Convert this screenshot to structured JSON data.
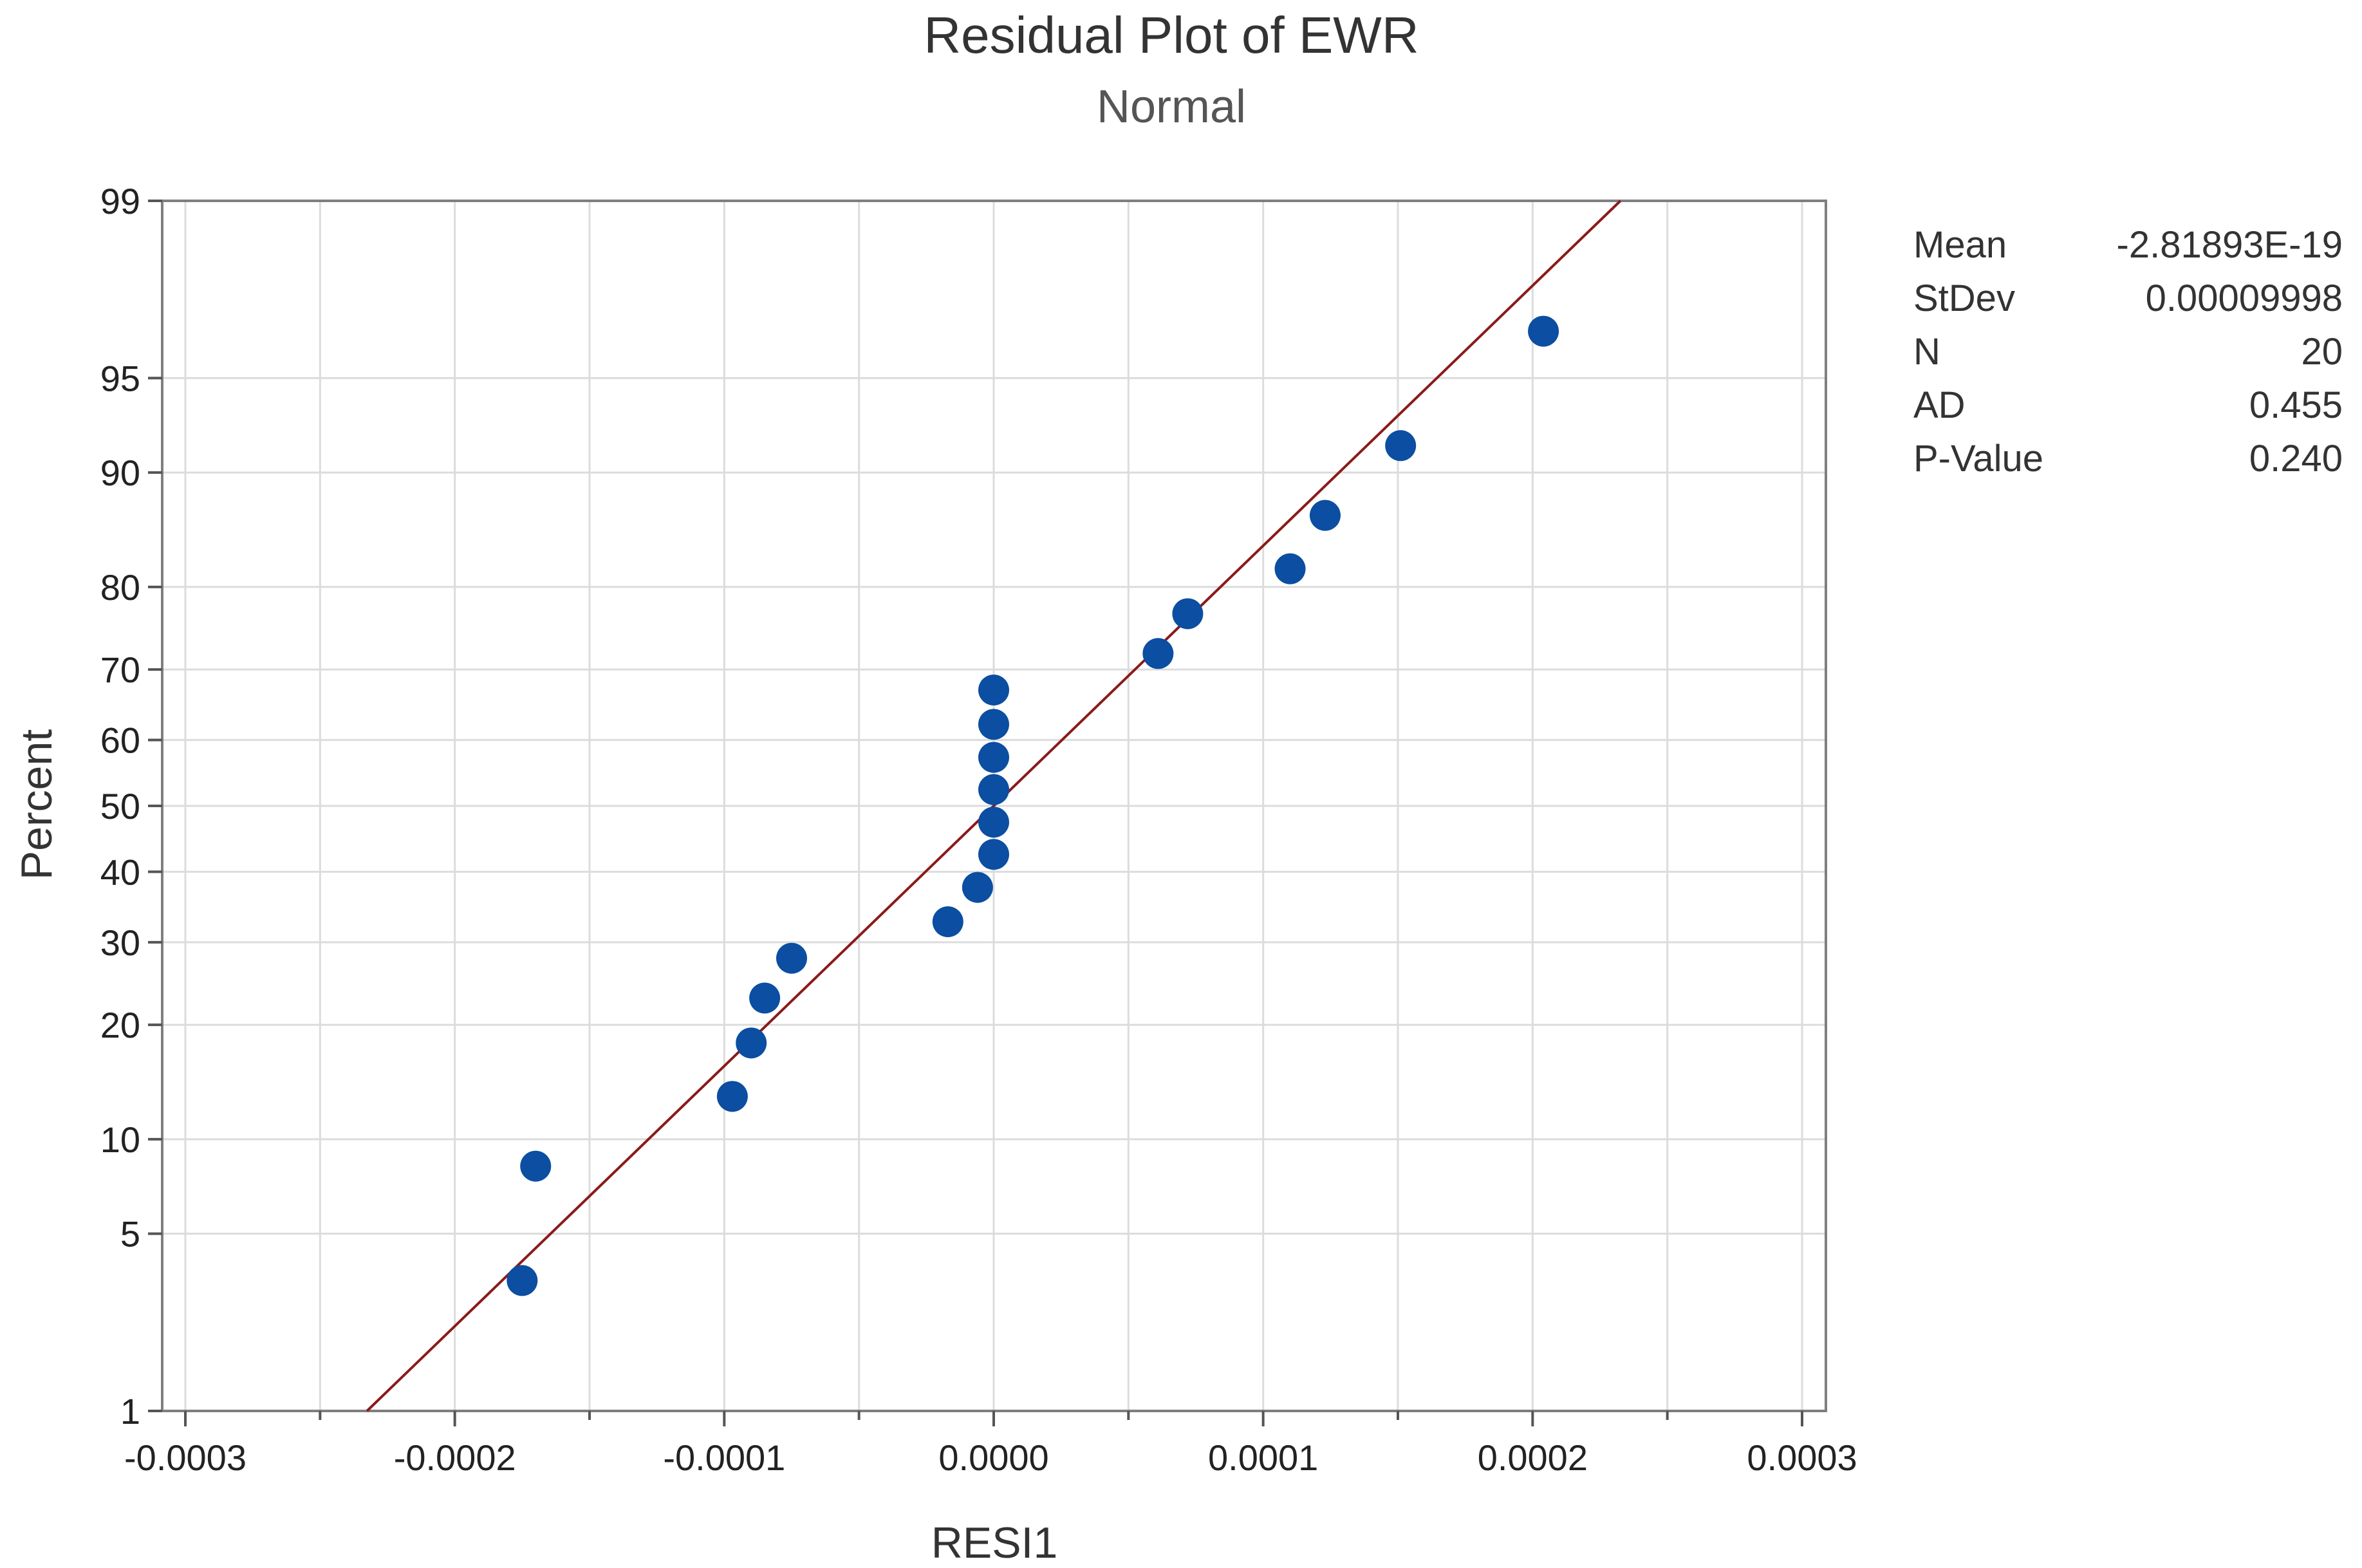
{
  "chart_data": {
    "type": "scatter",
    "title": "Residual Plot of EWR",
    "subtitle": "Normal",
    "xlabel": "RESI1",
    "ylabel": "Percent",
    "xlim": [
      -0.0003,
      0.0003
    ],
    "ylim": [
      1,
      99
    ],
    "y_scale": "normal-probability",
    "grid": true,
    "x_ticks": [
      -0.0003,
      -0.0002,
      -0.0001,
      0.0,
      0.0001,
      0.0002,
      0.0003
    ],
    "x_tick_labels": [
      "-0.0003",
      "-0.0002",
      "-0.0001",
      "0.0000",
      "0.0001",
      "0.0002",
      "0.0003"
    ],
    "y_ticks": [
      1,
      5,
      10,
      20,
      30,
      40,
      50,
      60,
      70,
      80,
      90,
      95,
      99
    ],
    "y_tick_labels": [
      "1",
      "5",
      "10",
      "20",
      "30",
      "40",
      "50",
      "60",
      "70",
      "80",
      "90",
      "95",
      "99"
    ],
    "points": {
      "x": [
        -0.000175,
        -0.00017,
        -9.7e-05,
        -9e-05,
        -8.5e-05,
        -7.5e-05,
        -1.7e-05,
        -6e-06,
        0.0,
        0.0,
        0.0,
        0.0,
        0.0,
        0.0,
        6.1e-05,
        7.2e-05,
        0.00011,
        0.000123,
        0.000151,
        0.000204
      ],
      "y": [
        3.4,
        8.3,
        13.2,
        18.1,
        23.0,
        27.9,
        32.8,
        37.7,
        42.6,
        47.5,
        52.5,
        57.4,
        62.3,
        67.2,
        72.1,
        77.0,
        81.9,
        86.8,
        91.7,
        96.6
      ],
      "color": "#0b4ea2"
    },
    "fit_line": {
      "mean": -2.81893e-19,
      "stdev": 9.998e-05,
      "color": "#8b1a1a"
    },
    "stats": [
      {
        "label": "Mean",
        "value": "-2.81893E-19"
      },
      {
        "label": "StDev",
        "value": "0.00009998"
      },
      {
        "label": "N",
        "value": "20"
      },
      {
        "label": "AD",
        "value": "0.455"
      },
      {
        "label": "P-Value",
        "value": "0.240"
      }
    ]
  }
}
